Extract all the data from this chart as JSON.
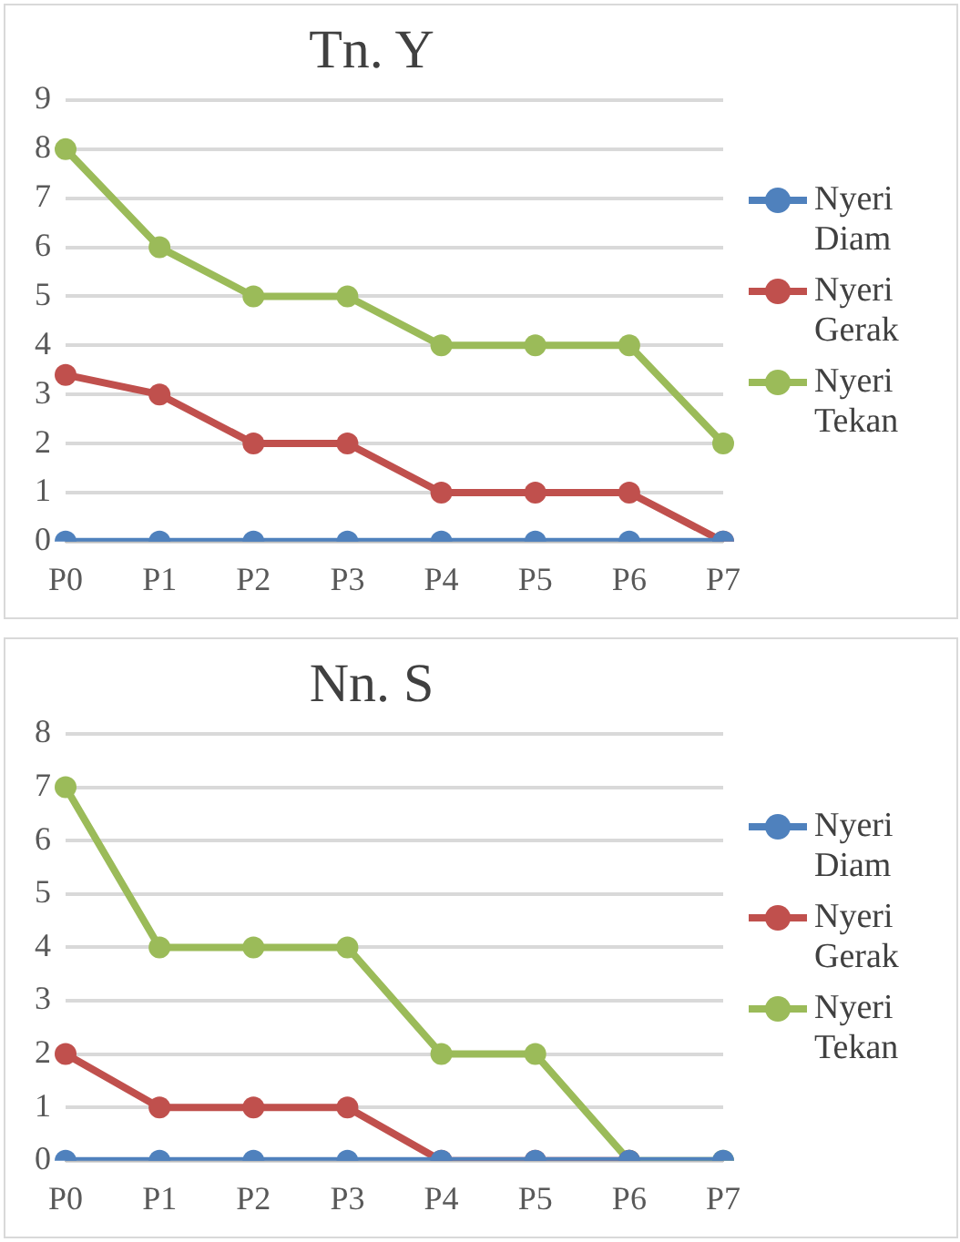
{
  "chart_data": [
    {
      "type": "line",
      "title": "Tn. Y",
      "categories": [
        "P0",
        "P1",
        "P2",
        "P3",
        "P4",
        "P5",
        "P6",
        "P7"
      ],
      "series": [
        {
          "name": "Nyeri Diam",
          "color": "#4f81bd",
          "values": [
            0,
            0,
            0,
            0,
            0,
            0,
            0,
            0
          ]
        },
        {
          "name": "Nyeri Gerak",
          "color": "#c0504d",
          "values": [
            3.4,
            3,
            2,
            2,
            1,
            1,
            1,
            0
          ]
        },
        {
          "name": "Nyeri Tekan",
          "color": "#9bbb59",
          "values": [
            8,
            6,
            5,
            5,
            4,
            4,
            4,
            2
          ]
        }
      ],
      "ylim": [
        0,
        9
      ],
      "yticks": [
        0,
        1,
        2,
        3,
        4,
        5,
        6,
        7,
        8,
        9
      ],
      "grid": "y",
      "legend": "right",
      "marker": "circle"
    },
    {
      "type": "line",
      "title": "Nn. S",
      "categories": [
        "P0",
        "P1",
        "P2",
        "P3",
        "P4",
        "P5",
        "P6",
        "P7"
      ],
      "series": [
        {
          "name": "Nyeri Diam",
          "color": "#4f81bd",
          "values": [
            0,
            0,
            0,
            0,
            0,
            0,
            0,
            0
          ]
        },
        {
          "name": "Nyeri Gerak",
          "color": "#c0504d",
          "values": [
            2,
            1,
            1,
            1,
            0,
            0,
            0,
            null
          ]
        },
        {
          "name": "Nyeri Tekan",
          "color": "#9bbb59",
          "values": [
            7,
            4,
            4,
            4,
            2,
            2,
            0,
            0
          ]
        }
      ],
      "ylim": [
        0,
        8
      ],
      "yticks": [
        0,
        1,
        2,
        3,
        4,
        5,
        6,
        7,
        8
      ],
      "grid": "y",
      "legend": "right",
      "marker": "circle"
    }
  ]
}
